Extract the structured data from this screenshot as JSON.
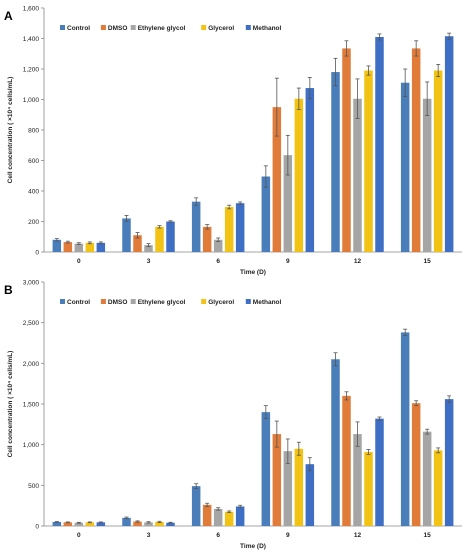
{
  "chart_data": [
    {
      "panel_label": "A",
      "type": "bar",
      "categories": [
        "0",
        "3",
        "6",
        "9",
        "12",
        "15"
      ],
      "xlabel": "Time (D)",
      "ylabel": "Cell concentration ( ×10⁴ cells/mL)",
      "ylim": [
        0,
        1600
      ],
      "yticks": [
        0,
        200,
        400,
        600,
        800,
        1000,
        1200,
        1400,
        1600
      ],
      "ytick_labels": [
        "0",
        "200",
        "400",
        "600",
        "800",
        "1,000",
        "1,200",
        "1,400",
        "1,600"
      ],
      "grid": false,
      "legend_position": "top-left",
      "series": [
        {
          "name": "Control",
          "color": "#4a7ebb",
          "values": [
            80,
            220,
            330,
            495,
            1180,
            1110
          ],
          "errors": [
            8,
            20,
            25,
            70,
            90,
            90
          ]
        },
        {
          "name": "DMSO",
          "color": "#e07b39",
          "values": [
            65,
            110,
            165,
            950,
            1335,
            1335
          ],
          "errors": [
            6,
            18,
            15,
            190,
            50,
            50
          ]
        },
        {
          "name": "Ethylene glycol",
          "color": "#a5a5a5",
          "values": [
            55,
            45,
            80,
            635,
            1005,
            1005
          ],
          "errors": [
            6,
            10,
            12,
            130,
            130,
            110
          ]
        },
        {
          "name": "Glycerol",
          "color": "#f2c314",
          "values": [
            60,
            165,
            295,
            1005,
            1190,
            1190
          ],
          "errors": [
            6,
            8,
            12,
            70,
            30,
            40
          ]
        },
        {
          "name": "Methanol",
          "color": "#3f6fc4",
          "values": [
            60,
            200,
            320,
            1075,
            1410,
            1415
          ],
          "errors": [
            6,
            5,
            8,
            70,
            20,
            20
          ]
        }
      ]
    },
    {
      "panel_label": "B",
      "type": "bar",
      "categories": [
        "0",
        "3",
        "6",
        "9",
        "12",
        "15"
      ],
      "xlabel": "Time (D)",
      "ylabel": "Cell concentration ( ×10⁴ cells/mL)",
      "ylim": [
        0,
        3000
      ],
      "yticks": [
        0,
        500,
        1000,
        1500,
        2000,
        2500,
        3000
      ],
      "ytick_labels": [
        "0",
        "500",
        "1,000",
        "1,500",
        "2,000",
        "2,500",
        "3,000"
      ],
      "grid": false,
      "legend_position": "top-left",
      "series": [
        {
          "name": "Control",
          "color": "#4a7ebb",
          "values": [
            50,
            100,
            490,
            1400,
            2050,
            2380
          ],
          "errors": [
            5,
            10,
            30,
            80,
            80,
            40
          ]
        },
        {
          "name": "DMSO",
          "color": "#e07b39",
          "values": [
            45,
            55,
            260,
            1130,
            1600,
            1510
          ],
          "errors": [
            5,
            8,
            20,
            160,
            50,
            30
          ]
        },
        {
          "name": "Ethylene glycol",
          "color": "#a5a5a5",
          "values": [
            40,
            45,
            210,
            920,
            1130,
            1160
          ],
          "errors": [
            5,
            8,
            15,
            150,
            150,
            30
          ]
        },
        {
          "name": "Glycerol",
          "color": "#f2c314",
          "values": [
            45,
            50,
            175,
            950,
            910,
            930
          ],
          "errors": [
            5,
            8,
            10,
            80,
            30,
            30
          ]
        },
        {
          "name": "Methanol",
          "color": "#3f6fc4",
          "values": [
            45,
            40,
            240,
            760,
            1320,
            1560
          ],
          "errors": [
            5,
            6,
            15,
            80,
            20,
            40
          ]
        }
      ]
    }
  ]
}
